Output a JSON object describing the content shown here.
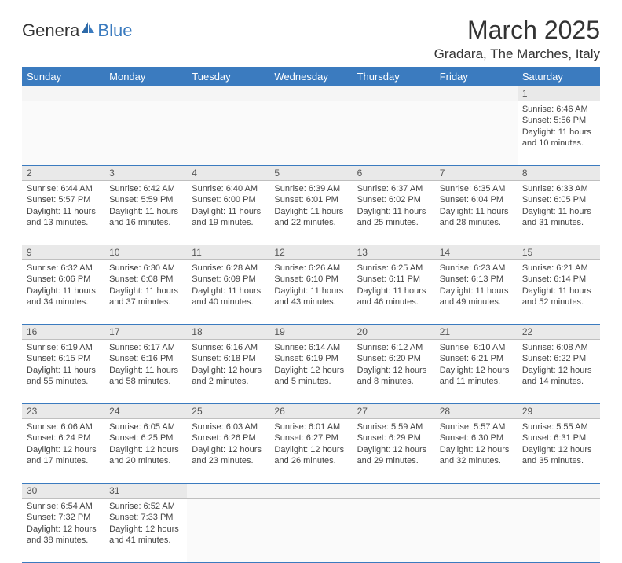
{
  "logo": {
    "text1": "Genera",
    "text2": "Blue"
  },
  "title": "March 2025",
  "location": "Gradara, The Marches, Italy",
  "colors": {
    "header_bg": "#3b7bbf",
    "header_fg": "#ffffff",
    "daynum_bg": "#e9e9e9",
    "border": "#3b7bbf"
  },
  "day_headers": [
    "Sunday",
    "Monday",
    "Tuesday",
    "Wednesday",
    "Thursday",
    "Friday",
    "Saturday"
  ],
  "weeks": [
    [
      null,
      null,
      null,
      null,
      null,
      null,
      {
        "n": "1",
        "sunrise": "6:46 AM",
        "sunset": "5:56 PM",
        "daylight": "11 hours and 10 minutes."
      }
    ],
    [
      {
        "n": "2",
        "sunrise": "6:44 AM",
        "sunset": "5:57 PM",
        "daylight": "11 hours and 13 minutes."
      },
      {
        "n": "3",
        "sunrise": "6:42 AM",
        "sunset": "5:59 PM",
        "daylight": "11 hours and 16 minutes."
      },
      {
        "n": "4",
        "sunrise": "6:40 AM",
        "sunset": "6:00 PM",
        "daylight": "11 hours and 19 minutes."
      },
      {
        "n": "5",
        "sunrise": "6:39 AM",
        "sunset": "6:01 PM",
        "daylight": "11 hours and 22 minutes."
      },
      {
        "n": "6",
        "sunrise": "6:37 AM",
        "sunset": "6:02 PM",
        "daylight": "11 hours and 25 minutes."
      },
      {
        "n": "7",
        "sunrise": "6:35 AM",
        "sunset": "6:04 PM",
        "daylight": "11 hours and 28 minutes."
      },
      {
        "n": "8",
        "sunrise": "6:33 AM",
        "sunset": "6:05 PM",
        "daylight": "11 hours and 31 minutes."
      }
    ],
    [
      {
        "n": "9",
        "sunrise": "6:32 AM",
        "sunset": "6:06 PM",
        "daylight": "11 hours and 34 minutes."
      },
      {
        "n": "10",
        "sunrise": "6:30 AM",
        "sunset": "6:08 PM",
        "daylight": "11 hours and 37 minutes."
      },
      {
        "n": "11",
        "sunrise": "6:28 AM",
        "sunset": "6:09 PM",
        "daylight": "11 hours and 40 minutes."
      },
      {
        "n": "12",
        "sunrise": "6:26 AM",
        "sunset": "6:10 PM",
        "daylight": "11 hours and 43 minutes."
      },
      {
        "n": "13",
        "sunrise": "6:25 AM",
        "sunset": "6:11 PM",
        "daylight": "11 hours and 46 minutes."
      },
      {
        "n": "14",
        "sunrise": "6:23 AM",
        "sunset": "6:13 PM",
        "daylight": "11 hours and 49 minutes."
      },
      {
        "n": "15",
        "sunrise": "6:21 AM",
        "sunset": "6:14 PM",
        "daylight": "11 hours and 52 minutes."
      }
    ],
    [
      {
        "n": "16",
        "sunrise": "6:19 AM",
        "sunset": "6:15 PM",
        "daylight": "11 hours and 55 minutes."
      },
      {
        "n": "17",
        "sunrise": "6:17 AM",
        "sunset": "6:16 PM",
        "daylight": "11 hours and 58 minutes."
      },
      {
        "n": "18",
        "sunrise": "6:16 AM",
        "sunset": "6:18 PM",
        "daylight": "12 hours and 2 minutes."
      },
      {
        "n": "19",
        "sunrise": "6:14 AM",
        "sunset": "6:19 PM",
        "daylight": "12 hours and 5 minutes."
      },
      {
        "n": "20",
        "sunrise": "6:12 AM",
        "sunset": "6:20 PM",
        "daylight": "12 hours and 8 minutes."
      },
      {
        "n": "21",
        "sunrise": "6:10 AM",
        "sunset": "6:21 PM",
        "daylight": "12 hours and 11 minutes."
      },
      {
        "n": "22",
        "sunrise": "6:08 AM",
        "sunset": "6:22 PM",
        "daylight": "12 hours and 14 minutes."
      }
    ],
    [
      {
        "n": "23",
        "sunrise": "6:06 AM",
        "sunset": "6:24 PM",
        "daylight": "12 hours and 17 minutes."
      },
      {
        "n": "24",
        "sunrise": "6:05 AM",
        "sunset": "6:25 PM",
        "daylight": "12 hours and 20 minutes."
      },
      {
        "n": "25",
        "sunrise": "6:03 AM",
        "sunset": "6:26 PM",
        "daylight": "12 hours and 23 minutes."
      },
      {
        "n": "26",
        "sunrise": "6:01 AM",
        "sunset": "6:27 PM",
        "daylight": "12 hours and 26 minutes."
      },
      {
        "n": "27",
        "sunrise": "5:59 AM",
        "sunset": "6:29 PM",
        "daylight": "12 hours and 29 minutes."
      },
      {
        "n": "28",
        "sunrise": "5:57 AM",
        "sunset": "6:30 PM",
        "daylight": "12 hours and 32 minutes."
      },
      {
        "n": "29",
        "sunrise": "5:55 AM",
        "sunset": "6:31 PM",
        "daylight": "12 hours and 35 minutes."
      }
    ],
    [
      {
        "n": "30",
        "sunrise": "6:54 AM",
        "sunset": "7:32 PM",
        "daylight": "12 hours and 38 minutes."
      },
      {
        "n": "31",
        "sunrise": "6:52 AM",
        "sunset": "7:33 PM",
        "daylight": "12 hours and 41 minutes."
      },
      null,
      null,
      null,
      null,
      null
    ]
  ],
  "labels": {
    "sunrise": "Sunrise: ",
    "sunset": "Sunset: ",
    "daylight": "Daylight: "
  }
}
